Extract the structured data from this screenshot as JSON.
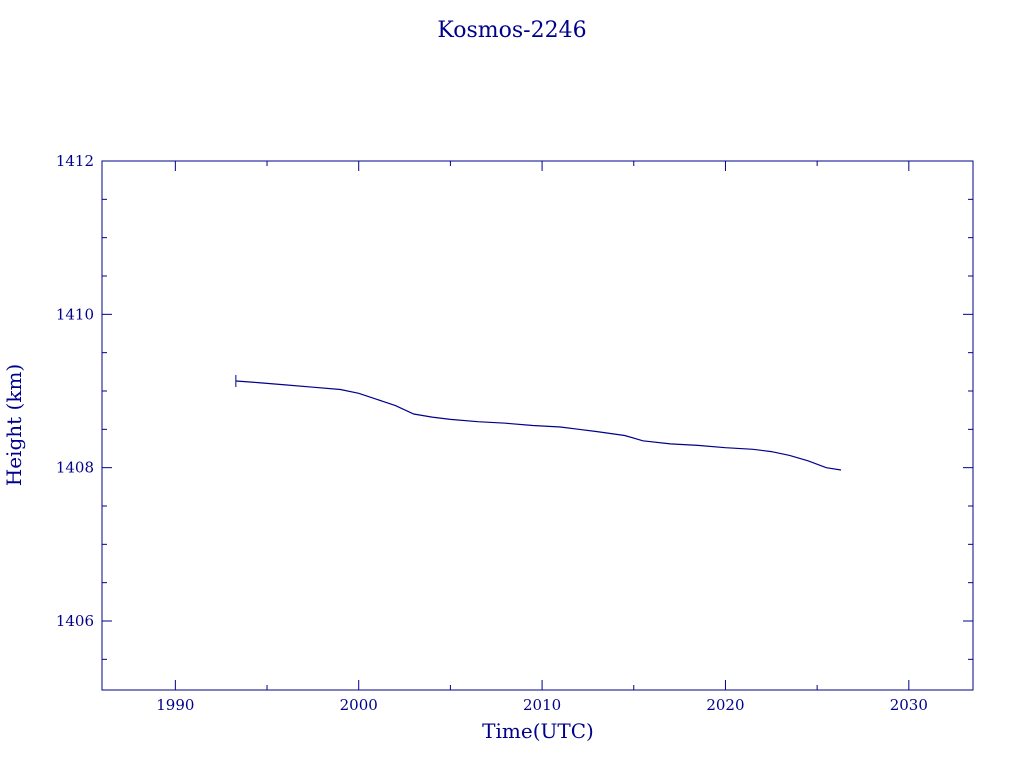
{
  "chart_data": {
    "type": "line",
    "title": "Kosmos-2246",
    "xlabel": "Time(UTC)",
    "ylabel": "Height (km)",
    "xlim": [
      1986,
      2033.5
    ],
    "ylim": [
      1405.1,
      1412.0
    ],
    "xticks": [
      1990,
      2000,
      2010,
      2020,
      2030
    ],
    "yticks": [
      1406,
      1408,
      1410,
      1412
    ],
    "x_minor_step": 5,
    "y_minor_step": 0.5,
    "grid": false,
    "color": "#00008b",
    "series": [
      {
        "x": [
          1993.3,
          1994.5,
          1996.0,
          1997.5,
          1999.0,
          2000.0,
          2001.0,
          2002.0,
          2003.0,
          2004.0,
          2005.0,
          2006.5,
          2008.0,
          2009.5,
          2011.0,
          2012.0,
          2013.0,
          2014.5,
          2015.5,
          2017.0,
          2018.5,
          2020.0,
          2021.5,
          2022.5,
          2023.5,
          2024.5,
          2025.5,
          2026.3
        ],
        "y": [
          1409.13,
          1409.11,
          1409.08,
          1409.05,
          1409.02,
          1408.97,
          1408.89,
          1408.81,
          1408.7,
          1408.66,
          1408.63,
          1408.6,
          1408.58,
          1408.55,
          1408.53,
          1408.5,
          1408.47,
          1408.42,
          1408.35,
          1408.31,
          1408.29,
          1408.26,
          1408.24,
          1408.21,
          1408.16,
          1408.09,
          1408.0,
          1407.97
        ]
      }
    ]
  }
}
